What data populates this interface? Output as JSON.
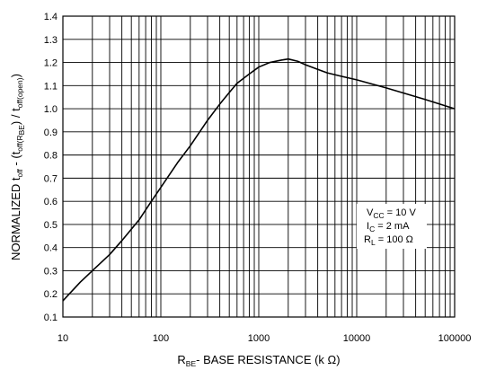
{
  "chart_data": {
    "type": "line",
    "title": "",
    "xscale": "log",
    "xlim": [
      10,
      100000
    ],
    "ylim": [
      0.1,
      1.4
    ],
    "grid": true,
    "x_ticks": [
      "10",
      "100",
      "1000",
      "10000",
      "100000"
    ],
    "y_ticks": [
      "0.1",
      "0.2",
      "0.3",
      "0.4",
      "0.5",
      "0.6",
      "0.7",
      "0.8",
      "0.9",
      "1.0",
      "1.1",
      "1.2",
      "1.3",
      "1.4"
    ],
    "xlabel": {
      "main": "R",
      "sub": "BE",
      "rest": "- BASE RESISTANCE (k Ω)"
    },
    "ylabel": {
      "p1": "NORMALIZED t",
      "s1": "off",
      "p2": " - (t",
      "s2": "off(R",
      "s3": "BE",
      "p3": ") / t",
      "s4": "off(open)",
      "p4": ")"
    },
    "annotation": [
      {
        "main": "V",
        "sub": "CC",
        "rest": " = 10 V"
      },
      {
        "main": "I",
        "sub": "C",
        "rest": " = 2 mA"
      },
      {
        "main": "R",
        "sub": "L",
        "rest": " = 100 Ω"
      }
    ],
    "series": [
      {
        "x": [
          10,
          15,
          20,
          30,
          40,
          60,
          80,
          100,
          150,
          200,
          300,
          400,
          500,
          600,
          800,
          1000,
          1300,
          1700,
          2000,
          2500,
          3000,
          4000,
          5000,
          7000,
          10000,
          20000,
          50000,
          100000
        ],
        "y": [
          0.17,
          0.25,
          0.3,
          0.37,
          0.43,
          0.52,
          0.6,
          0.66,
          0.77,
          0.84,
          0.95,
          1.02,
          1.07,
          1.11,
          1.15,
          1.18,
          1.2,
          1.21,
          1.215,
          1.205,
          1.19,
          1.17,
          1.155,
          1.14,
          1.125,
          1.09,
          1.04,
          1.0
        ]
      }
    ]
  }
}
